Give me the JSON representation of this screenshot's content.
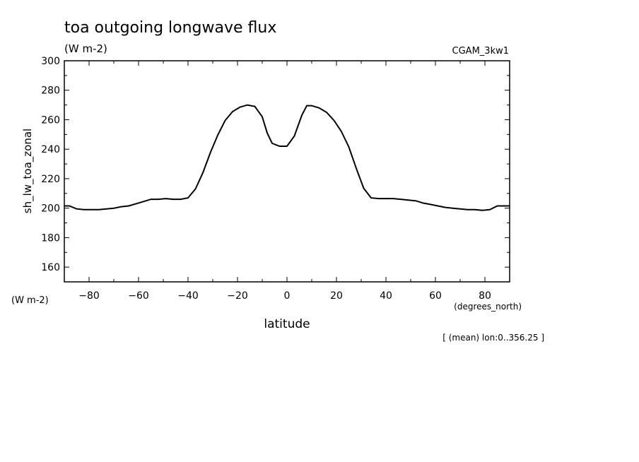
{
  "chart_data": {
    "type": "line",
    "title": "toa outgoing longwave flux",
    "subtitle": "(W m-2)",
    "dataset_label": "CGAM_3kw1",
    "ylabel": "sh_lw_toa_zonal",
    "yunits": "(W m-2)",
    "xlabel": "latitude",
    "xunits": "(degrees_north)",
    "footnote": "[ (mean) lon:0..356.25 ]",
    "xlim": [
      -90,
      90
    ],
    "ylim": [
      150,
      300
    ],
    "xticks": [
      -80,
      -60,
      -40,
      -20,
      0,
      20,
      40,
      60,
      80
    ],
    "yticks": [
      160,
      180,
      200,
      220,
      240,
      260,
      280,
      300
    ],
    "grid": false,
    "series": [
      {
        "x": [
          -90,
          -88,
          -85,
          -82,
          -79,
          -76,
          -73,
          -70,
          -67,
          -64,
          -61,
          -58,
          -55,
          -52,
          -49,
          -46,
          -43,
          -40,
          -37,
          -34,
          -31,
          -28,
          -25,
          -22,
          -19,
          -16,
          -13,
          -10,
          -8,
          -6,
          -3,
          0,
          3,
          6,
          8,
          10,
          13,
          16,
          19,
          22,
          25,
          28,
          31,
          34,
          37,
          40,
          43,
          46,
          49,
          52,
          55,
          58,
          61,
          64,
          67,
          70,
          73,
          76,
          79,
          82,
          85,
          88,
          90
        ],
        "y": [
          201.5,
          201.5,
          199.5,
          199,
          199,
          199,
          199.5,
          200,
          201,
          201.5,
          203,
          204.5,
          206,
          206,
          206.5,
          206,
          206,
          207,
          213,
          224,
          237.5,
          249.5,
          259.5,
          265.5,
          268.5,
          270,
          269,
          262,
          251,
          244,
          242,
          242,
          249,
          263,
          269.5,
          269.5,
          268,
          265,
          259.5,
          252,
          241.5,
          227,
          213.5,
          207,
          206.5,
          206.5,
          206.5,
          206,
          205.5,
          205,
          203.5,
          202.5,
          201.5,
          200.5,
          200,
          199.5,
          199,
          199,
          198.5,
          199,
          201.5,
          201.5,
          201.5
        ]
      }
    ]
  }
}
